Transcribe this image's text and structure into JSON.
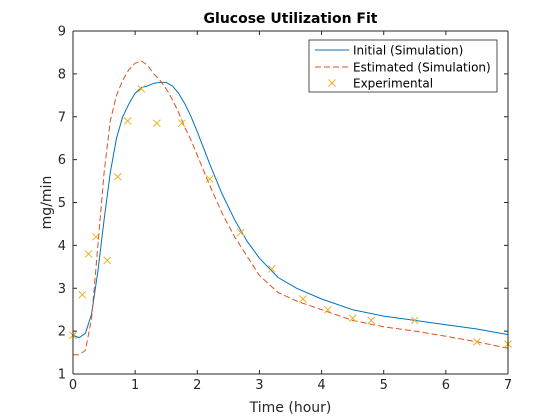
{
  "chart_data": {
    "type": "line",
    "title": "Glucose Utilization Fit",
    "xlabel": "Time (hour)",
    "ylabel": "mg/min",
    "xlim": [
      0,
      7
    ],
    "ylim": [
      1,
      9
    ],
    "xticks": [
      0,
      1,
      2,
      3,
      4,
      5,
      6,
      7
    ],
    "yticks": [
      1,
      2,
      3,
      4,
      5,
      6,
      7,
      8,
      9
    ],
    "grid": false,
    "legend_position": "top-right",
    "series": [
      {
        "name": "Initial (Simulation)",
        "style": "solid",
        "color": "#0072BD",
        "x": [
          0,
          0.1,
          0.2,
          0.3,
          0.4,
          0.5,
          0.6,
          0.7,
          0.8,
          0.9,
          1.0,
          1.1,
          1.2,
          1.3,
          1.4,
          1.5,
          1.6,
          1.7,
          1.8,
          1.9,
          2.0,
          2.2,
          2.4,
          2.6,
          2.8,
          3.0,
          3.3,
          3.6,
          4.0,
          4.5,
          5.0,
          5.5,
          6.0,
          6.5,
          7.0
        ],
        "y": [
          1.9,
          1.85,
          1.95,
          2.4,
          3.4,
          4.6,
          5.7,
          6.5,
          7.0,
          7.3,
          7.55,
          7.68,
          7.72,
          7.78,
          7.8,
          7.8,
          7.72,
          7.55,
          7.3,
          7.0,
          6.65,
          5.9,
          5.2,
          4.6,
          4.1,
          3.7,
          3.25,
          3.0,
          2.75,
          2.5,
          2.35,
          2.25,
          2.15,
          2.05,
          1.92
        ]
      },
      {
        "name": "Estimated (Simulation)",
        "style": "dashed",
        "color": "#D95319",
        "x": [
          0,
          0.1,
          0.2,
          0.3,
          0.4,
          0.5,
          0.6,
          0.7,
          0.8,
          0.9,
          1.0,
          1.1,
          1.2,
          1.3,
          1.4,
          1.5,
          1.6,
          1.7,
          1.8,
          1.9,
          2.0,
          2.2,
          2.4,
          2.6,
          2.8,
          3.0,
          3.3,
          3.6,
          4.0,
          4.5,
          5.0,
          5.5,
          6.0,
          6.5,
          7.0
        ],
        "y": [
          1.45,
          1.45,
          1.55,
          2.3,
          4.0,
          5.7,
          6.9,
          7.5,
          7.85,
          8.1,
          8.25,
          8.3,
          8.2,
          8.0,
          7.85,
          7.65,
          7.4,
          7.1,
          6.75,
          6.45,
          6.1,
          5.4,
          4.75,
          4.2,
          3.75,
          3.3,
          2.9,
          2.7,
          2.5,
          2.25,
          2.1,
          2.0,
          1.88,
          1.75,
          1.6
        ]
      },
      {
        "name": "Experimental",
        "style": "marker-x",
        "color": "#EDB120",
        "x": [
          0.0,
          0.15,
          0.25,
          0.37,
          0.55,
          0.72,
          0.88,
          1.1,
          1.35,
          1.75,
          2.2,
          2.7,
          3.2,
          3.7,
          4.1,
          4.5,
          4.8,
          5.5,
          6.5,
          7.0
        ],
        "y": [
          1.9,
          2.85,
          3.8,
          4.2,
          3.65,
          5.6,
          6.9,
          7.65,
          6.85,
          6.85,
          5.55,
          4.3,
          3.45,
          2.75,
          2.5,
          2.3,
          2.25,
          2.25,
          1.75,
          1.7
        ]
      }
    ]
  }
}
